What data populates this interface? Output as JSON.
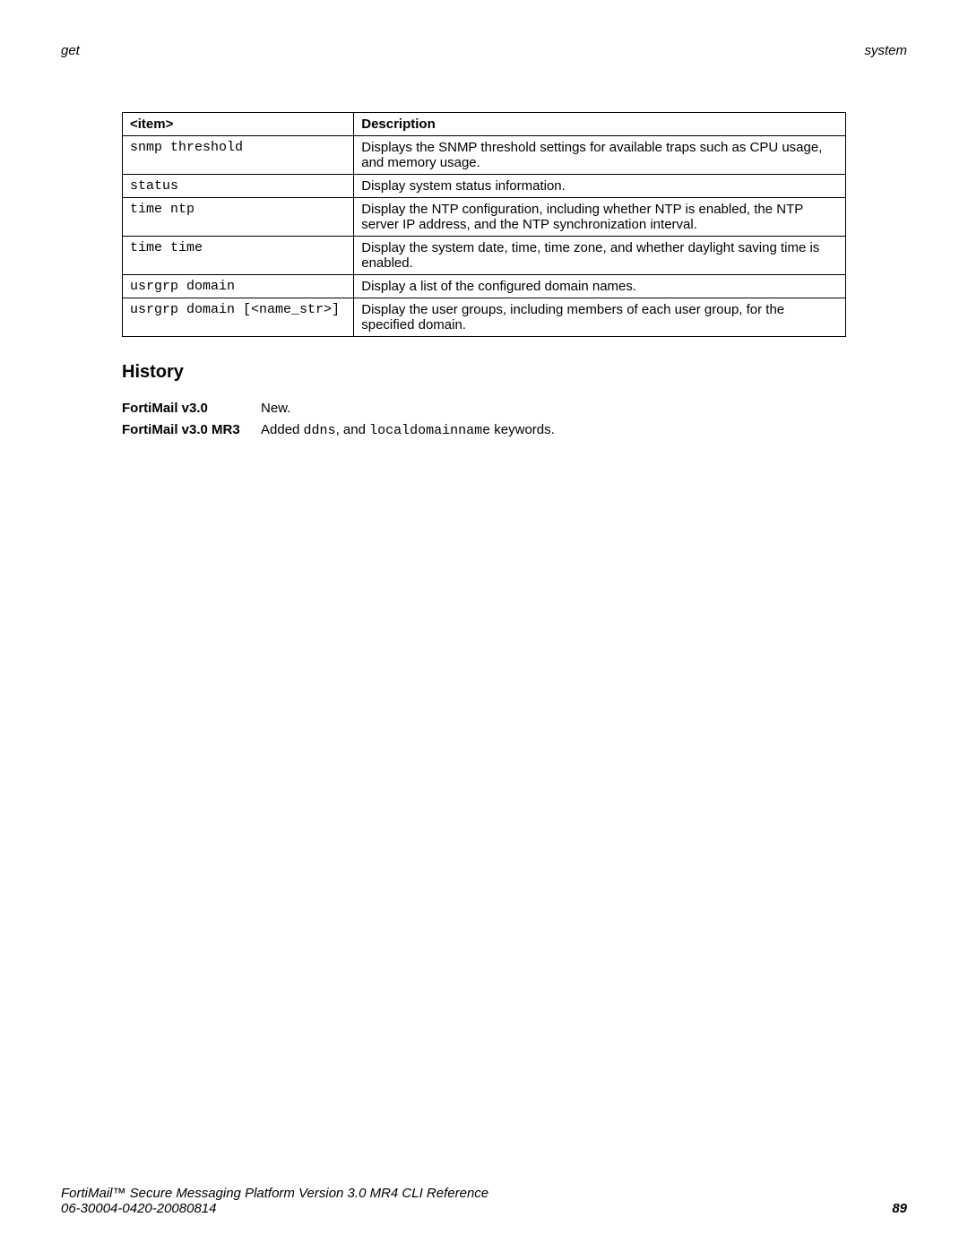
{
  "header": {
    "left": "get",
    "right": "system"
  },
  "table": {
    "header_item": "<item>",
    "header_desc": "Description",
    "rows": [
      {
        "item": "snmp threshold",
        "desc": "Displays the SNMP threshold settings for available traps such as CPU usage, and memory usage."
      },
      {
        "item": "status",
        "desc": "Display system status information."
      },
      {
        "item": "time ntp",
        "desc": "Display the NTP configuration, including whether NTP is enabled, the NTP server IP address, and the NTP synchronization interval."
      },
      {
        "item": "time time",
        "desc": "Display the system date, time, time zone, and whether daylight saving time is enabled."
      },
      {
        "item": "usrgrp domain",
        "desc": "Display a list of the configured domain names."
      },
      {
        "item": "usrgrp domain [<name_str>]",
        "desc": "Display the user groups, including members of each user group, for the specified domain."
      }
    ]
  },
  "history": {
    "heading": "History",
    "rows": [
      {
        "label": "FortiMail v3.0",
        "desc_pre": "New.",
        "mono1": "",
        "desc_mid": "",
        "mono2": "",
        "desc_post": ""
      },
      {
        "label": "FortiMail v3.0 MR3",
        "desc_pre": "Added ",
        "mono1": "ddns",
        "desc_mid": ", and ",
        "mono2": "localdomainname",
        "desc_post": " keywords."
      }
    ]
  },
  "footer": {
    "line1": "FortiMail™ Secure Messaging Platform Version 3.0 MR4 CLI Reference",
    "line2": "06-30004-0420-20080814",
    "page": "89"
  }
}
